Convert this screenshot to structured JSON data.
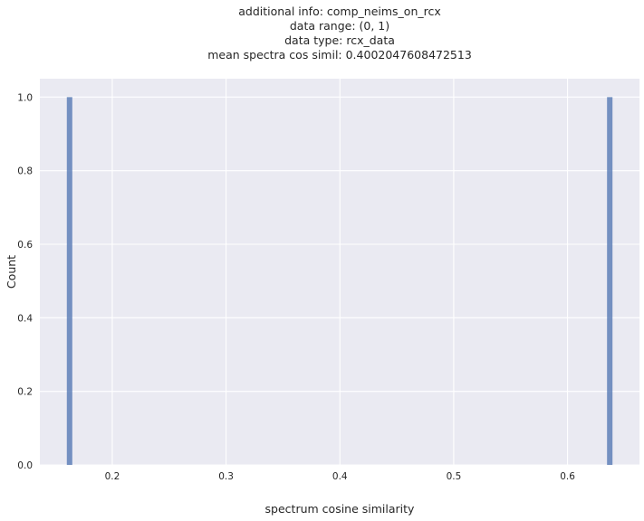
{
  "chart_data": {
    "type": "bar",
    "title_lines": [
      "additional info: comp_neims_on_rcx",
      "data range: (0, 1)",
      "data type: rcx_data",
      "mean spectra cos simil: 0.4002047608472513"
    ],
    "xlabel": "spectrum cosine similarity",
    "ylabel": "Count",
    "xlim": [
      0.1364,
      0.6632
    ],
    "ylim": [
      0,
      1.05
    ],
    "xticks": [
      0.2,
      0.3,
      0.4,
      0.5,
      0.6
    ],
    "xtick_labels": [
      "0.2",
      "0.3",
      "0.4",
      "0.5",
      "0.6"
    ],
    "yticks": [
      0.0,
      0.2,
      0.4,
      0.6,
      0.8,
      1.0
    ],
    "ytick_labels": [
      "0.0",
      "0.2",
      "0.4",
      "0.6",
      "0.8",
      "1.0"
    ],
    "bins": [
      {
        "x0": 0.1601,
        "x1": 0.1649,
        "count": 1
      },
      {
        "x0": 0.6347,
        "x1": 0.6395,
        "count": 1
      }
    ],
    "grid": true,
    "colors": {
      "background": "#eaeaf2",
      "grid": "#ffffff",
      "bar": "#4c72b0"
    }
  }
}
